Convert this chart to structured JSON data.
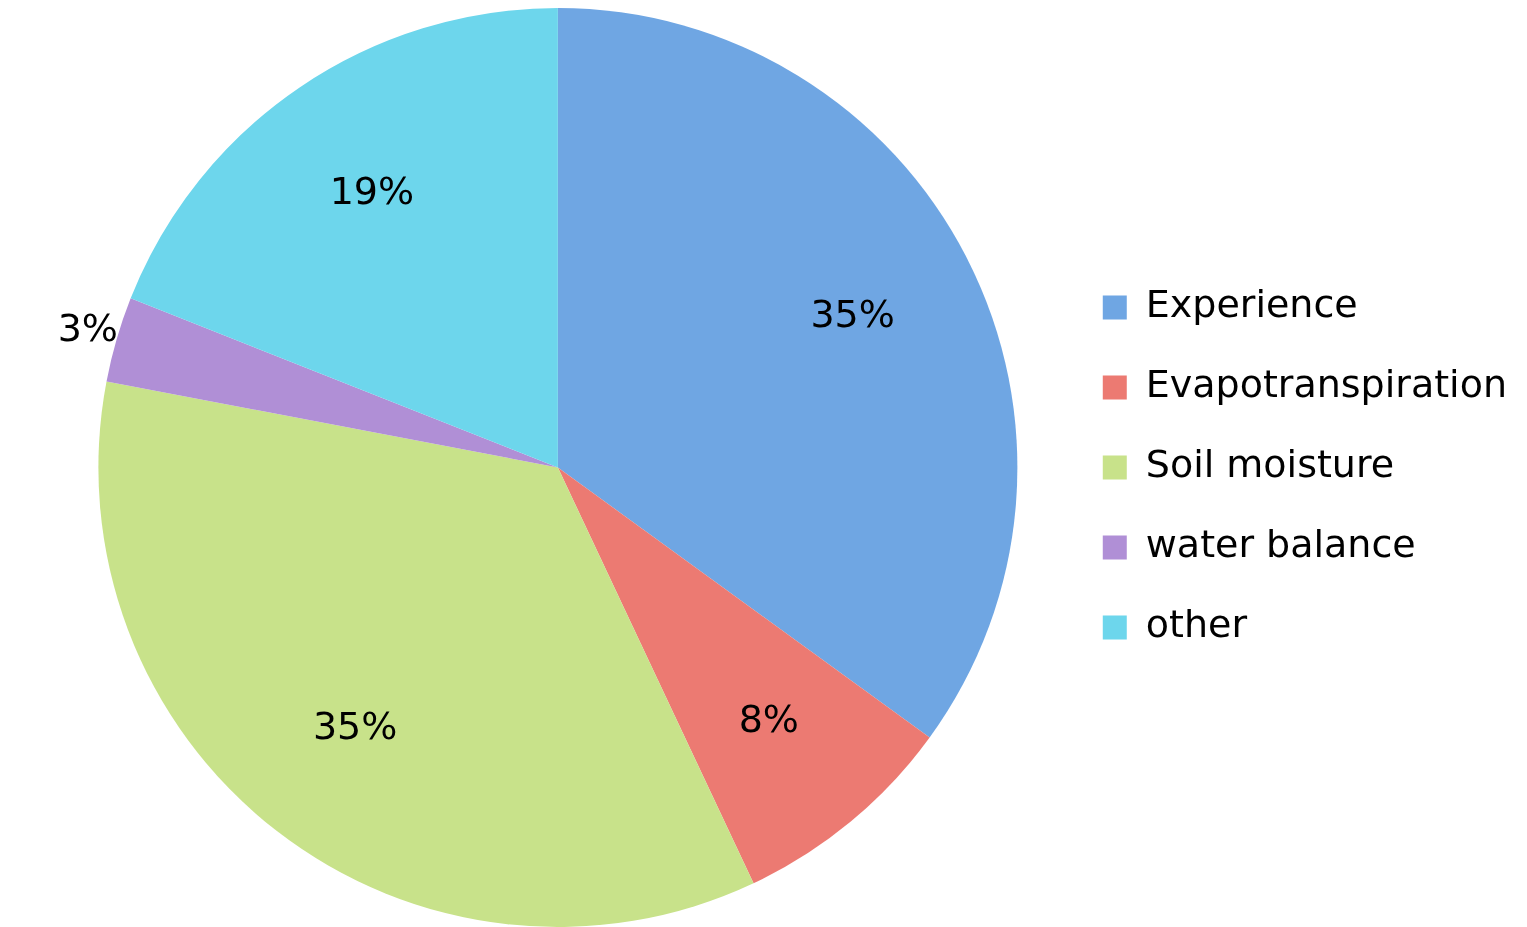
{
  "chart_data": {
    "type": "pie",
    "categories": [
      "Experience",
      "Evapotranspiration",
      "Soil moisture",
      "water balance",
      "other"
    ],
    "values": [
      35,
      8,
      35,
      3,
      19
    ],
    "colors": [
      "#6fa6e3",
      "#ec7a72",
      "#c8e28a",
      "#b08fd6",
      "#6dd6ec"
    ],
    "value_labels": [
      "35%",
      "8%",
      "35%",
      "3%",
      "19%"
    ],
    "legend": "right"
  }
}
